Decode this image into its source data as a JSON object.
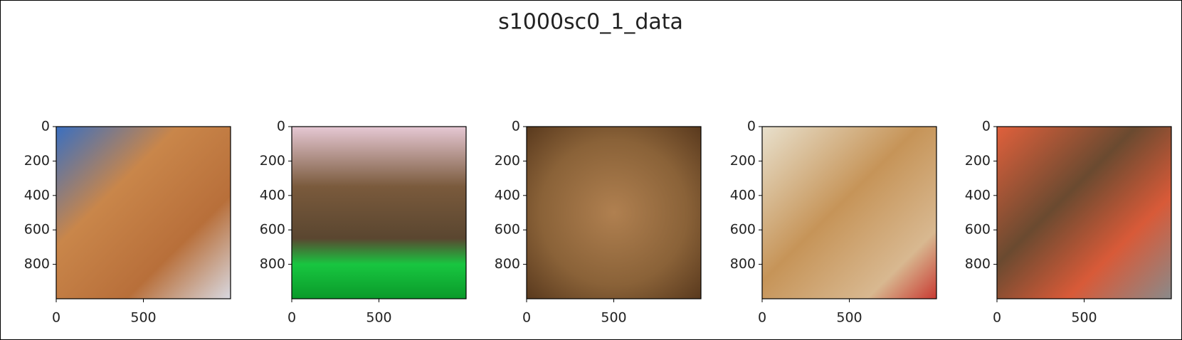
{
  "title": "s1000sc0_1_data",
  "chart_data": [
    {
      "type": "image",
      "xlim": [
        0,
        1000
      ],
      "ylim": [
        1000,
        0
      ],
      "xticks": [
        0,
        500
      ],
      "yticks": [
        0,
        200,
        400,
        600,
        800
      ]
    },
    {
      "type": "image",
      "xlim": [
        0,
        1000
      ],
      "ylim": [
        1000,
        0
      ],
      "xticks": [
        0,
        500
      ],
      "yticks": [
        0,
        200,
        400,
        600,
        800
      ]
    },
    {
      "type": "image",
      "xlim": [
        0,
        1000
      ],
      "ylim": [
        1000,
        0
      ],
      "xticks": [
        0,
        500
      ],
      "yticks": [
        0,
        200,
        400,
        600,
        800
      ]
    },
    {
      "type": "image",
      "xlim": [
        0,
        1000
      ],
      "ylim": [
        1000,
        0
      ],
      "xticks": [
        0,
        500
      ],
      "yticks": [
        0,
        200,
        400,
        600,
        800
      ]
    },
    {
      "type": "image",
      "xlim": [
        0,
        1000
      ],
      "ylim": [
        1000,
        0
      ],
      "xticks": [
        0,
        500
      ],
      "yticks": [
        0,
        200,
        400,
        600,
        800
      ]
    }
  ]
}
